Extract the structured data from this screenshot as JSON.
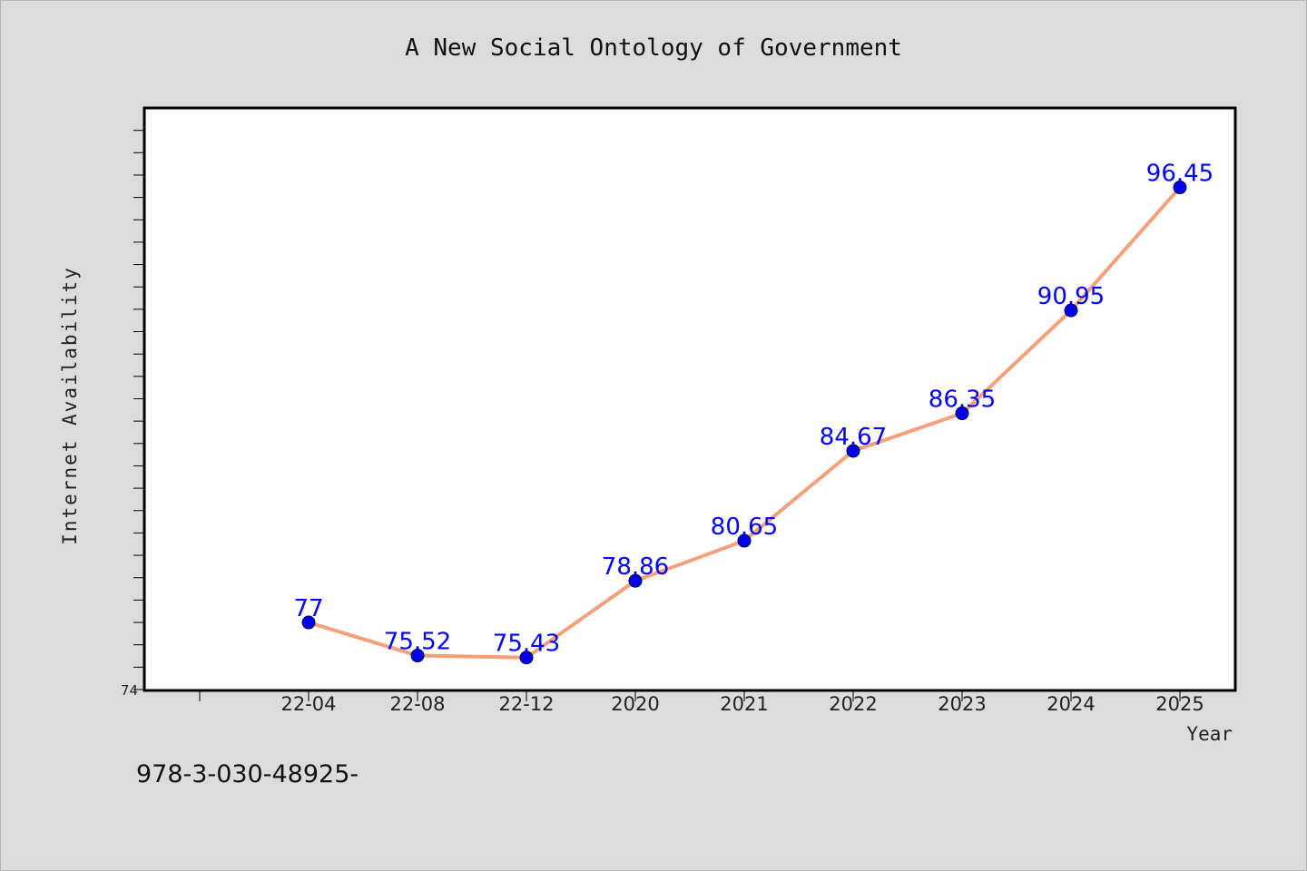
{
  "chart_data": {
    "type": "line",
    "title": "A New Social Ontology of Government",
    "xlabel": "Year",
    "ylabel": "Internet Availability",
    "categories": [
      "22-04",
      "22-08",
      "22-12",
      "2020",
      "2021",
      "2022",
      "2023",
      "2024",
      "2025"
    ],
    "series": [
      {
        "values": [
          77,
          75.52,
          75.43,
          78.86,
          80.65,
          84.67,
          86.35,
          90.95,
          96.45
        ],
        "data_labels": [
          "77",
          "75.52",
          "75.43",
          "78.86",
          "80.65",
          "84.67",
          "86.35",
          "90.95",
          "96.45"
        ],
        "line_color": "#f4a07a",
        "marker_color": "#0000ee"
      }
    ],
    "y_tick_labels": [
      "74"
    ],
    "ylim": [
      74,
      100
    ],
    "grid": false,
    "data_label_color": "#0000ff"
  },
  "footer_text": "978-3-030-48925-"
}
